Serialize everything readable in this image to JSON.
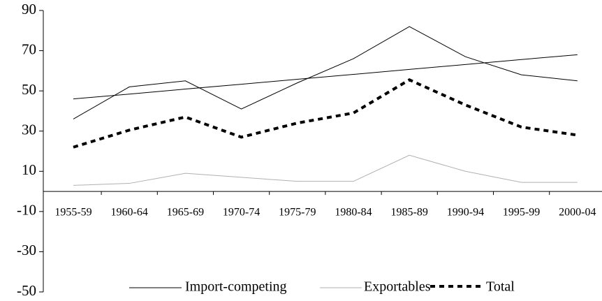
{
  "chart_data": {
    "type": "line",
    "categories": [
      "1955-59",
      "1960-64",
      "1965-69",
      "1970-74",
      "1975-79",
      "1980-84",
      "1985-89",
      "1990-94",
      "1995-99",
      "2000-04"
    ],
    "series": [
      {
        "name": "Import-competing",
        "color": "#000000",
        "width": 1,
        "dash": "none",
        "values": [
          36,
          52,
          55,
          41,
          54,
          66,
          82,
          67,
          58,
          55
        ]
      },
      {
        "name": "Exportables",
        "color": "#b0b0b0",
        "width": 1,
        "dash": "none",
        "values": [
          3,
          4,
          9,
          7,
          5,
          5,
          18,
          10,
          4.5,
          4.5
        ]
      },
      {
        "name": "Total",
        "color": "#000000",
        "width": 4,
        "dash": "7 6",
        "values": [
          22,
          30.5,
          37,
          27,
          34,
          39,
          55.5,
          43,
          32,
          28
        ]
      },
      {
        "color": "#000000",
        "width": 1,
        "dash": "none",
        "values": [
          46,
          48.4,
          50.9,
          53.3,
          55.8,
          58.2,
          60.7,
          63.1,
          65.6,
          68
        ]
      }
    ],
    "ylim": [
      -50,
      90
    ],
    "yticks": [
      90,
      70,
      50,
      30,
      10,
      -10,
      -30,
      -50
    ]
  }
}
